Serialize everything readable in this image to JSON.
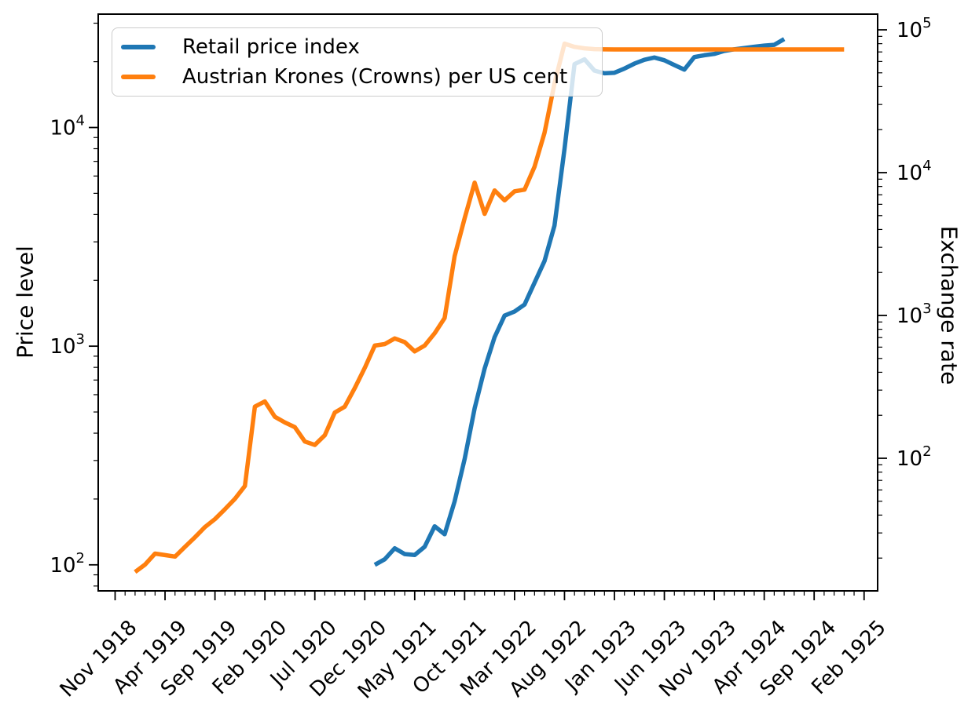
{
  "colors": {
    "blue": "#1f77b4",
    "orange": "#ff7f0e",
    "axis": "#000000",
    "legend_border": "#cccccc",
    "background": "#ffffff"
  },
  "chart_data": {
    "type": "line",
    "title": "",
    "grid": false,
    "x_axis": {
      "label": "",
      "major_tick_every_months": 5,
      "months_domain": [
        0,
        75
      ],
      "epoch_label": "Nov 1918",
      "tick_labels": [
        "Nov 1918",
        "Apr 1919",
        "Sep 1919",
        "Feb 1920",
        "Jul 1920",
        "Dec 1920",
        "May 1921",
        "Oct 1921",
        "Mar 1922",
        "Aug 1922",
        "Jan 1923",
        "Jun 1923",
        "Nov 1923",
        "Apr 1924",
        "Sep 1924",
        "Feb 1925"
      ]
    },
    "left_axis": {
      "label": "Price level",
      "scale": "log",
      "tick_label_base": "10",
      "major_tick_exponents": [
        2,
        3,
        4
      ],
      "ylim": [
        76,
        33000
      ]
    },
    "right_axis": {
      "label": "Exchange rate",
      "scale": "log",
      "tick_label_base": "10",
      "major_tick_exponents": [
        2,
        3,
        4,
        5
      ],
      "ylim": [
        11.8,
        128800
      ]
    },
    "legend": {
      "position": "upper-left",
      "entries": [
        {
          "label": "Retail price index",
          "color": "#1f77b4"
        },
        {
          "label": "Austrian Krones (Crowns) per US cent",
          "color": "#ff7f0e"
        }
      ]
    },
    "series": [
      {
        "name": "Retail price index",
        "axis": "left",
        "color": "#1f77b4",
        "start_month_index": 26,
        "start_month_label": "Jan 1921",
        "end_month_label": "Jun 1924",
        "values": [
          100,
          106,
          119,
          112,
          111,
          121,
          150,
          138,
          195,
          305,
          520,
          790,
          1100,
          1380,
          1440,
          1550,
          1950,
          2450,
          3560,
          8000,
          19500,
          20500,
          18200,
          17700,
          17800,
          18600,
          19600,
          20400,
          20900,
          20300,
          19300,
          18400,
          21000,
          21400,
          21700,
          22400,
          22800,
          23100,
          23400,
          23700,
          23900,
          25400
        ]
      },
      {
        "name": "Austrian Krones (Crowns) per US cent",
        "axis": "right",
        "color": "#ff7f0e",
        "start_month_index": 2,
        "start_month_label": "Jan 1919",
        "end_month_label": "Dec 1924",
        "values": [
          16,
          18,
          21.5,
          21,
          20.5,
          24,
          28,
          33,
          37.5,
          44,
          52,
          64,
          230,
          250,
          195,
          178,
          165,
          131,
          124,
          145,
          209,
          230,
          310,
          430,
          615,
          630,
          690,
          650,
          560,
          615,
          750,
          960,
          2600,
          4800,
          8500,
          5150,
          7500,
          6400,
          7400,
          7600,
          11000,
          19000,
          42000,
          80000,
          76000,
          74200,
          73300,
          73000,
          72900,
          72900,
          72900,
          72900,
          72900,
          72900,
          72900,
          72900,
          72900,
          72900,
          72900,
          72900,
          72900,
          72900,
          72900,
          72900,
          72900,
          72900,
          72900,
          72900,
          72900,
          72900,
          72900,
          72900
        ]
      }
    ]
  }
}
